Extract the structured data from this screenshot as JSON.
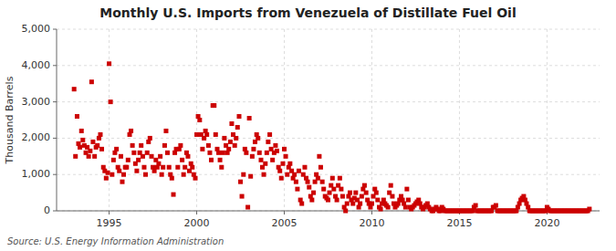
{
  "chart_data": {
    "type": "scatter",
    "title": "Monthly U.S. Imports from Venezuela of Distillate Fuel Oil",
    "ylabel": "Thousand Barrels",
    "source": "Source: U.S. Energy Information Administration",
    "color": "#cc0000",
    "marker": "square",
    "grid": true,
    "xlim": [
      1992.0,
      2023.0
    ],
    "xticks": [
      1995,
      2000,
      2005,
      2010,
      2015,
      2020
    ],
    "ylim": [
      0,
      5000
    ],
    "yticks": [
      0,
      {
        "value": 1000,
        "label": "1,000"
      },
      {
        "value": 2000,
        "label": "2,000"
      },
      {
        "value": 3000,
        "label": "3,000"
      },
      {
        "value": 4000,
        "label": "4,000"
      },
      {
        "value": 5000,
        "label": "5,000"
      }
    ],
    "x": [
      1993.0,
      1993.08,
      1993.17,
      1993.25,
      1993.33,
      1993.42,
      1993.5,
      1993.58,
      1993.67,
      1993.75,
      1993.83,
      1993.92,
      1994.0,
      1994.08,
      1994.17,
      1994.25,
      1994.33,
      1994.42,
      1994.5,
      1994.58,
      1994.67,
      1994.75,
      1994.83,
      1994.92,
      1995.0,
      1995.08,
      1995.17,
      1995.25,
      1995.33,
      1995.42,
      1995.5,
      1995.58,
      1995.67,
      1995.75,
      1995.83,
      1995.92,
      1996.0,
      1996.08,
      1996.17,
      1996.25,
      1996.33,
      1996.42,
      1996.5,
      1996.58,
      1996.67,
      1996.75,
      1996.83,
      1996.92,
      1997.0,
      1997.08,
      1997.17,
      1997.25,
      1997.33,
      1997.42,
      1997.5,
      1997.58,
      1997.67,
      1997.75,
      1997.83,
      1997.92,
      1998.0,
      1998.08,
      1998.17,
      1998.25,
      1998.33,
      1998.42,
      1998.5,
      1998.58,
      1998.67,
      1998.75,
      1998.83,
      1998.92,
      1999.0,
      1999.08,
      1999.17,
      1999.25,
      1999.33,
      1999.42,
      1999.5,
      1999.58,
      1999.67,
      1999.75,
      1999.83,
      1999.92,
      2000.0,
      2000.08,
      2000.17,
      2000.25,
      2000.33,
      2000.42,
      2000.5,
      2000.58,
      2000.67,
      2000.75,
      2000.83,
      2000.92,
      2001.0,
      2001.08,
      2001.17,
      2001.25,
      2001.33,
      2001.42,
      2001.5,
      2001.58,
      2001.67,
      2001.75,
      2001.83,
      2001.92,
      2002.0,
      2002.08,
      2002.17,
      2002.25,
      2002.33,
      2002.42,
      2002.5,
      2002.58,
      2002.67,
      2002.75,
      2002.83,
      2002.92,
      2003.0,
      2003.08,
      2003.17,
      2003.25,
      2003.33,
      2003.42,
      2003.5,
      2003.58,
      2003.67,
      2003.75,
      2003.83,
      2003.92,
      2004.0,
      2004.08,
      2004.17,
      2004.25,
      2004.33,
      2004.42,
      2004.5,
      2004.58,
      2004.67,
      2004.75,
      2004.83,
      2004.92,
      2005.0,
      2005.08,
      2005.17,
      2005.25,
      2005.33,
      2005.42,
      2005.5,
      2005.58,
      2005.67,
      2005.75,
      2005.83,
      2005.92,
      2006.0,
      2006.08,
      2006.17,
      2006.25,
      2006.33,
      2006.42,
      2006.5,
      2006.58,
      2006.67,
      2006.75,
      2006.83,
      2006.92,
      2007.0,
      2007.08,
      2007.17,
      2007.25,
      2007.33,
      2007.42,
      2007.5,
      2007.58,
      2007.67,
      2007.75,
      2007.83,
      2007.92,
      2008.0,
      2008.08,
      2008.17,
      2008.25,
      2008.33,
      2008.42,
      2008.5,
      2008.58,
      2008.67,
      2008.75,
      2008.83,
      2008.92,
      2009.0,
      2009.08,
      2009.17,
      2009.25,
      2009.33,
      2009.42,
      2009.5,
      2009.58,
      2009.67,
      2009.75,
      2009.83,
      2009.92,
      2010.0,
      2010.08,
      2010.17,
      2010.25,
      2010.33,
      2010.42,
      2010.5,
      2010.58,
      2010.67,
      2010.75,
      2010.83,
      2010.92,
      2011.0,
      2011.08,
      2011.17,
      2011.25,
      2011.33,
      2011.42,
      2011.5,
      2011.58,
      2011.67,
      2011.75,
      2011.83,
      2011.92,
      2012.0,
      2012.08,
      2012.17,
      2012.25,
      2012.33,
      2012.42,
      2012.5,
      2012.58,
      2012.67,
      2012.75,
      2012.83,
      2012.92,
      2013.0,
      2013.08,
      2013.17,
      2013.25,
      2013.33,
      2013.42,
      2013.5,
      2013.58,
      2013.67,
      2013.75,
      2013.83,
      2013.92,
      2014.0,
      2014.08,
      2014.17,
      2014.25,
      2014.33,
      2014.42,
      2014.5,
      2014.58,
      2014.67,
      2014.75,
      2014.83,
      2014.92,
      2015.0,
      2015.08,
      2015.17,
      2015.25,
      2015.33,
      2015.42,
      2015.5,
      2015.58,
      2015.67,
      2015.75,
      2015.83,
      2015.92,
      2016.0,
      2016.08,
      2016.17,
      2016.25,
      2016.33,
      2016.42,
      2016.5,
      2016.58,
      2016.67,
      2016.75,
      2016.83,
      2016.92,
      2017.0,
      2017.08,
      2017.17,
      2017.25,
      2017.33,
      2017.42,
      2017.5,
      2017.58,
      2017.67,
      2017.75,
      2017.83,
      2017.92,
      2018.0,
      2018.08,
      2018.17,
      2018.25,
      2018.33,
      2018.42,
      2018.5,
      2018.58,
      2018.67,
      2018.75,
      2018.83,
      2018.92,
      2019.0,
      2019.08,
      2019.17,
      2019.25,
      2019.33,
      2019.42,
      2019.5,
      2019.58,
      2019.67,
      2019.75,
      2019.83,
      2019.92,
      2020.0,
      2020.08,
      2020.17,
      2020.25,
      2020.33,
      2020.42,
      2020.5,
      2020.58,
      2020.67,
      2020.75,
      2020.83,
      2020.92,
      2021.0,
      2021.08,
      2021.17,
      2021.25,
      2021.33,
      2021.42,
      2021.5,
      2021.58,
      2021.67,
      2021.75,
      2021.83,
      2021.92,
      2022.0,
      2022.08,
      2022.17,
      2022.25,
      2022.33,
      2022.42
    ],
    "values": [
      3350,
      1500,
      2600,
      1850,
      1750,
      2200,
      1950,
      1800,
      1600,
      1750,
      1500,
      1650,
      3550,
      1900,
      1500,
      1750,
      1800,
      2000,
      2100,
      1700,
      1200,
      1100,
      900,
      1050,
      4050,
      3000,
      1000,
      1400,
      1600,
      1700,
      1200,
      1100,
      1500,
      800,
      1000,
      1200,
      1200,
      1400,
      2100,
      2200,
      1800,
      1600,
      1300,
      1100,
      1400,
      1600,
      1800,
      1500,
      1200,
      1000,
      1600,
      1900,
      2000,
      1500,
      1200,
      1100,
      1400,
      1200,
      1300,
      1500,
      1000,
      1200,
      1800,
      2200,
      1600,
      1200,
      1000,
      900,
      450,
      1600,
      1700,
      1200,
      1700,
      1800,
      1400,
      1000,
      1200,
      1600,
      1500,
      1100,
      1300,
      1200,
      1000,
      900,
      2100,
      2600,
      2500,
      2100,
      1700,
      2000,
      2200,
      2100,
      1800,
      1600,
      1400,
      2900,
      2900,
      2100,
      1700,
      1600,
      1400,
      1200,
      1600,
      2000,
      1800,
      1600,
      1700,
      1900,
      2400,
      2100,
      1800,
      2000,
      2300,
      2600,
      800,
      400,
      1000,
      1700,
      1600,
      100,
      2550,
      950,
      1500,
      1700,
      1900,
      2100,
      2000,
      1600,
      1400,
      1200,
      1000,
      1300,
      1600,
      1900,
      2100,
      1700,
      1400,
      1600,
      1800,
      1650,
      1200,
      1100,
      900,
      1300,
      1700,
      1500,
      1000,
      1200,
      1300,
      1100,
      900,
      1000,
      800,
      600,
      1100,
      300,
      200,
      1000,
      1200,
      900,
      800,
      650,
      400,
      300,
      500,
      800,
      1000,
      900,
      1500,
      1200,
      800,
      600,
      400,
      350,
      300,
      500,
      700,
      900,
      600,
      400,
      300,
      700,
      900,
      600,
      400,
      100,
      0,
      200,
      400,
      500,
      300,
      200,
      350,
      500,
      300,
      100,
      200,
      400,
      600,
      700,
      500,
      300,
      200,
      100,
      200,
      400,
      600,
      500,
      300,
      100,
      50,
      200,
      300,
      200,
      150,
      100,
      500,
      700,
      400,
      200,
      100,
      150,
      200,
      300,
      400,
      300,
      200,
      100,
      600,
      300,
      100,
      50,
      100,
      150,
      200,
      250,
      300,
      200,
      100,
      50,
      100,
      150,
      200,
      100,
      50,
      0,
      0,
      50,
      100,
      50,
      0,
      0,
      100,
      50,
      0,
      0,
      0,
      0,
      0,
      0,
      0,
      0,
      0,
      0,
      0,
      0,
      0,
      0,
      0,
      0,
      0,
      0,
      0,
      0,
      100,
      150,
      0,
      0,
      0,
      0,
      0,
      0,
      0,
      0,
      0,
      0,
      0,
      100,
      100,
      150,
      0,
      0,
      0,
      0,
      0,
      0,
      0,
      0,
      0,
      0,
      0,
      0,
      0,
      0,
      100,
      200,
      300,
      350,
      400,
      300,
      200,
      100,
      0,
      0,
      0,
      0,
      0,
      0,
      0,
      0,
      0,
      0,
      0,
      0,
      100,
      50,
      0,
      0,
      0,
      0,
      0,
      0,
      0,
      0,
      0,
      0,
      0,
      0,
      0,
      0,
      0,
      0,
      0,
      0,
      0,
      0,
      0,
      0,
      0,
      0,
      0,
      0,
      0,
      50
    ]
  }
}
